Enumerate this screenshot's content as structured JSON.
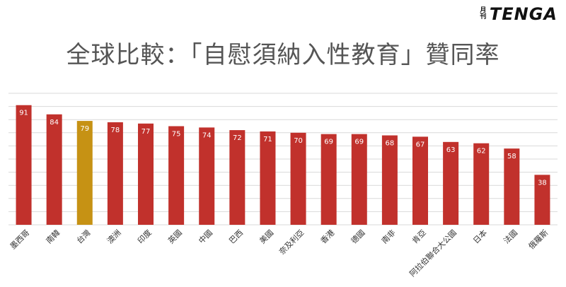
{
  "logo": {
    "small": "月刊",
    "main": "TENGA"
  },
  "title": "全球比較：「自慰須納入性教育」贊同率",
  "colors": {
    "bar": "#c1312c",
    "highlight": "#c69214",
    "grid": "#d9d9d9",
    "label": "#ffffff",
    "tick": "#333333"
  },
  "chart_data": {
    "type": "bar",
    "title": "全球比較：「自慰須納入性教育」贊同率",
    "categories": [
      "墨西哥",
      "南韓",
      "台灣",
      "澳洲",
      "印度",
      "英國",
      "中國",
      "巴西",
      "美國",
      "奈及利亞",
      "香港",
      "德國",
      "南非",
      "肯亞",
      "阿拉伯聯合大公國",
      "日本",
      "法國",
      "俄羅斯"
    ],
    "values": [
      91,
      84,
      79,
      78,
      77,
      75,
      74,
      72,
      71,
      70,
      69,
      69,
      68,
      67,
      63,
      62,
      58,
      38
    ],
    "highlight": "台灣",
    "ylim": [
      0,
      100
    ],
    "grid": true,
    "data_labels": true
  }
}
